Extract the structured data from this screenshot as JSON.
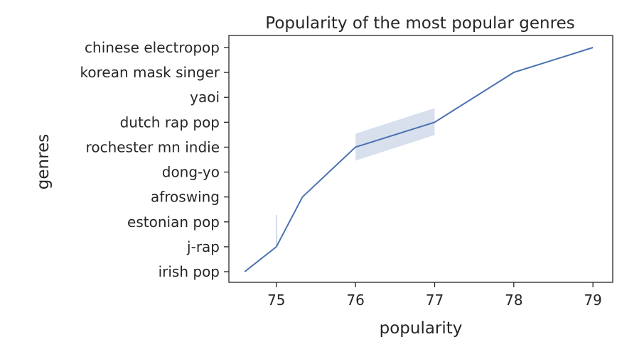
{
  "chart_data": {
    "type": "line",
    "title": "Popularity of the most popular genres",
    "xlabel": "popularity",
    "ylabel": "genres",
    "xlim": [
      74.4,
      79.25
    ],
    "xticks": [
      75,
      76,
      77,
      78,
      79
    ],
    "categories": [
      "irish pop",
      "j-rap",
      "estonian pop",
      "afroswing",
      "dong-yo",
      "rochester mn indie",
      "dutch rap pop",
      "yaoi",
      "korean mask singer",
      "chinese electropop"
    ],
    "series": [
      {
        "x": [
          74.6,
          75.0,
          75.33,
          76.0,
          77.0,
          78.0,
          79.0
        ],
        "y": [
          "irish pop",
          "j-rap",
          "afroswing",
          "rochester mn indie",
          "dutch rap pop",
          "korean mask singer",
          "chinese electropop"
        ],
        "ci": [
          {
            "x": 75.0,
            "y_low": "estonian pop",
            "y_high": "j-rap"
          },
          {
            "x_low": 76.0,
            "x_high": 77.0,
            "note": ""
          }
        ],
        "color": "#4c72b0"
      }
    ],
    "grid": false,
    "legend": false
  }
}
